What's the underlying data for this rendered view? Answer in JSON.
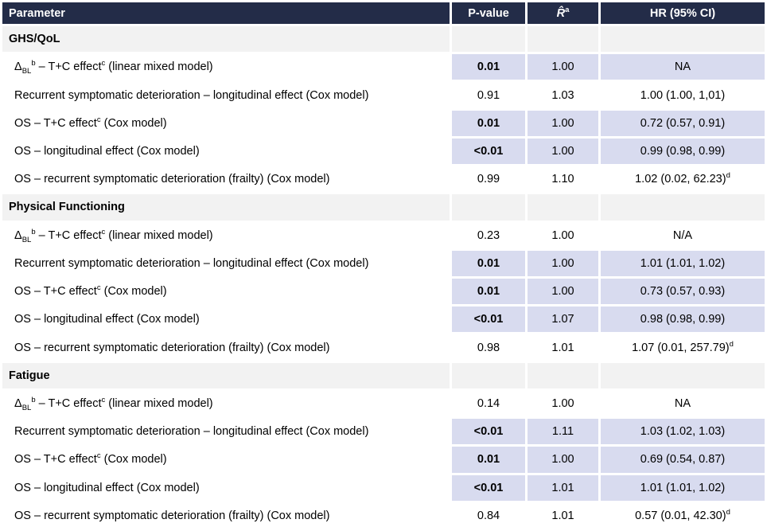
{
  "colors": {
    "header_bg": "#232c48",
    "header_text": "#ffffff",
    "highlight_bg": "#d8dbef",
    "section_bg": "#f2f2f2",
    "row_bg": "#ffffff",
    "text": "#000000"
  },
  "header": {
    "cells": [
      {
        "name": "col-parameter",
        "align": "left",
        "segments": [
          {
            "t": "Parameter"
          }
        ]
      },
      {
        "name": "col-p-value",
        "segments": [
          {
            "t": "P-value"
          }
        ]
      },
      {
        "name": "col-rhat",
        "segments": [
          {
            "t": "R̂",
            "i": true
          },
          {
            "t": "a",
            "sup": true
          }
        ]
      },
      {
        "name": "col-hr",
        "segments": [
          {
            "t": "HR (95% CI)"
          }
        ]
      }
    ]
  },
  "sections": [
    {
      "title": "GHS/QoL",
      "rows": [
        {
          "param": [
            {
              "t": "Δ"
            },
            {
              "t": "BL",
              "sub": true
            },
            {
              "t": "b",
              "sup": true
            },
            {
              "t": " – T+C effect"
            },
            {
              "t": "c",
              "sup": true
            },
            {
              "t": " (linear mixed model)"
            }
          ],
          "p_value": "0.01",
          "significant": true,
          "r_hat": "1.00",
          "hr": [
            {
              "t": "NA"
            }
          ]
        },
        {
          "param": [
            {
              "t": "Recurrent symptomatic deterioration – longitudinal effect (Cox model)"
            }
          ],
          "p_value": "0.91",
          "significant": false,
          "r_hat": "1.03",
          "hr": [
            {
              "t": "1.00 (1.00, 1,01)"
            }
          ]
        },
        {
          "param": [
            {
              "t": "OS – T+C effect"
            },
            {
              "t": "c",
              "sup": true
            },
            {
              "t": " (Cox model)"
            }
          ],
          "p_value": "0.01",
          "significant": true,
          "r_hat": "1.00",
          "hr": [
            {
              "t": "0.72 (0.57, 0.91)"
            }
          ]
        },
        {
          "param": [
            {
              "t": "OS – longitudinal effect (Cox model)"
            }
          ],
          "p_value": "<0.01",
          "significant": true,
          "r_hat": "1.00",
          "hr": [
            {
              "t": "0.99 (0.98, 0.99)"
            }
          ]
        },
        {
          "param": [
            {
              "t": "OS – recurrent symptomatic deterioration (frailty) (Cox model)"
            }
          ],
          "p_value": "0.99",
          "significant": false,
          "r_hat": "1.10",
          "hr": [
            {
              "t": "1.02 (0.02, 62.23)"
            },
            {
              "t": "d",
              "sup": true
            }
          ]
        }
      ]
    },
    {
      "title": "Physical Functioning",
      "rows": [
        {
          "param": [
            {
              "t": "Δ"
            },
            {
              "t": "BL",
              "sub": true
            },
            {
              "t": "b",
              "sup": true
            },
            {
              "t": " – T+C effect"
            },
            {
              "t": "c",
              "sup": true
            },
            {
              "t": " (linear mixed model)"
            }
          ],
          "p_value": "0.23",
          "significant": false,
          "r_hat": "1.00",
          "hr": [
            {
              "t": "N/A"
            }
          ]
        },
        {
          "param": [
            {
              "t": "Recurrent symptomatic deterioration – longitudinal effect (Cox model)"
            }
          ],
          "p_value": "0.01",
          "significant": true,
          "r_hat": "1.00",
          "hr": [
            {
              "t": "1.01 (1.01, 1.02)"
            }
          ]
        },
        {
          "param": [
            {
              "t": "OS – T+C effect"
            },
            {
              "t": "c",
              "sup": true
            },
            {
              "t": " (Cox model)"
            }
          ],
          "p_value": "0.01",
          "significant": true,
          "r_hat": "1.00",
          "hr": [
            {
              "t": "0.73 (0.57, 0.93)"
            }
          ]
        },
        {
          "param": [
            {
              "t": "OS – longitudinal effect (Cox model)"
            }
          ],
          "p_value": "<0.01",
          "significant": true,
          "r_hat": "1.07",
          "hr": [
            {
              "t": "0.98 (0.98, 0.99)"
            }
          ]
        },
        {
          "param": [
            {
              "t": "OS – recurrent symptomatic deterioration (frailty) (Cox model)"
            }
          ],
          "p_value": "0.98",
          "significant": false,
          "r_hat": "1.01",
          "hr": [
            {
              "t": "1.07 (0.01, 257.79)"
            },
            {
              "t": "d",
              "sup": true
            }
          ]
        }
      ]
    },
    {
      "title": "Fatigue",
      "rows": [
        {
          "param": [
            {
              "t": "Δ"
            },
            {
              "t": "BL",
              "sub": true
            },
            {
              "t": "b",
              "sup": true
            },
            {
              "t": " – T+C effect"
            },
            {
              "t": "c",
              "sup": true
            },
            {
              "t": " (linear mixed model)"
            }
          ],
          "p_value": "0.14",
          "significant": false,
          "r_hat": "1.00",
          "hr": [
            {
              "t": "NA"
            }
          ]
        },
        {
          "param": [
            {
              "t": "Recurrent symptomatic deterioration – longitudinal effect (Cox model)"
            }
          ],
          "p_value": "<0.01",
          "significant": true,
          "r_hat": "1.11",
          "hr": [
            {
              "t": "1.03 (1.02, 1.03)"
            }
          ]
        },
        {
          "param": [
            {
              "t": "OS – T+C effect"
            },
            {
              "t": "c",
              "sup": true
            },
            {
              "t": " (Cox model)"
            }
          ],
          "p_value": "0.01",
          "significant": true,
          "r_hat": "1.00",
          "hr": [
            {
              "t": "0.69 (0.54, 0.87)"
            }
          ]
        },
        {
          "param": [
            {
              "t": "OS – longitudinal effect (Cox model)"
            }
          ],
          "p_value": "<0.01",
          "significant": true,
          "r_hat": "1.01",
          "hr": [
            {
              "t": "1.01 (1.01, 1.02)"
            }
          ]
        },
        {
          "param": [
            {
              "t": "OS – recurrent symptomatic deterioration (frailty) (Cox model)"
            }
          ],
          "p_value": "0.84",
          "significant": false,
          "r_hat": "1.01",
          "hr": [
            {
              "t": "0.57 (0.01, 42.30)"
            },
            {
              "t": "d",
              "sup": true
            }
          ]
        }
      ]
    }
  ]
}
